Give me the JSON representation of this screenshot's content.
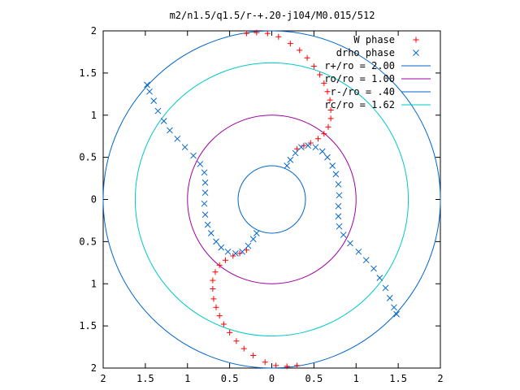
{
  "chart_data": {
    "type": "scatter",
    "title": "m2/n1.5/q1.5/r-+.20-j104/M0.015/512",
    "xlim": [
      -2,
      2
    ],
    "ylim": [
      -2,
      2
    ],
    "xticks": [
      -2,
      -1.5,
      -1,
      -0.5,
      0,
      0.5,
      1,
      1.5,
      2
    ],
    "yticks": [
      -2,
      -1.5,
      -1,
      -0.5,
      0,
      0.5,
      1,
      1.5,
      2
    ],
    "xtick_labels": [
      "2",
      "1.5",
      "1",
      "0.5",
      "0",
      "0.5",
      "1",
      "1.5",
      "2"
    ],
    "ytick_labels": [
      "2",
      "1.5",
      "1",
      "0.5",
      "0",
      "0.5",
      "1",
      "1.5",
      "2"
    ],
    "grid": false,
    "legend_position": "top-right",
    "series": [
      {
        "name": "W phase",
        "marker": "+",
        "color": "#ff0000",
        "points": [
          [
            -0.3,
            1.97
          ],
          [
            -0.18,
            1.98
          ],
          [
            -0.05,
            1.97
          ],
          [
            0.08,
            1.93
          ],
          [
            0.22,
            1.85
          ],
          [
            0.33,
            1.77
          ],
          [
            0.42,
            1.68
          ],
          [
            0.5,
            1.58
          ],
          [
            0.57,
            1.48
          ],
          [
            0.62,
            1.38
          ],
          [
            0.66,
            1.28
          ],
          [
            0.69,
            1.18
          ],
          [
            0.7,
            1.06
          ],
          [
            0.7,
            0.96
          ],
          [
            0.67,
            0.86
          ],
          [
            0.62,
            0.78
          ],
          [
            0.55,
            0.72
          ],
          [
            0.46,
            0.67
          ],
          [
            0.38,
            0.64
          ],
          [
            0.3,
            0.6
          ],
          [
            0.3,
            -1.97
          ],
          [
            0.18,
            -1.98
          ],
          [
            0.05,
            -1.97
          ],
          [
            -0.08,
            -1.93
          ],
          [
            -0.22,
            -1.85
          ],
          [
            -0.33,
            -1.77
          ],
          [
            -0.42,
            -1.68
          ],
          [
            -0.5,
            -1.58
          ],
          [
            -0.57,
            -1.48
          ],
          [
            -0.62,
            -1.38
          ],
          [
            -0.66,
            -1.28
          ],
          [
            -0.69,
            -1.18
          ],
          [
            -0.7,
            -1.06
          ],
          [
            -0.7,
            -0.96
          ],
          [
            -0.67,
            -0.86
          ],
          [
            -0.62,
            -0.78
          ],
          [
            -0.55,
            -0.72
          ],
          [
            -0.46,
            -0.67
          ],
          [
            -0.38,
            -0.64
          ],
          [
            -0.3,
            -0.6
          ]
        ]
      },
      {
        "name": "drho phase",
        "marker": "x",
        "color": "#0066cc",
        "points": [
          [
            0.18,
            0.4
          ],
          [
            0.22,
            0.47
          ],
          [
            0.28,
            0.55
          ],
          [
            0.35,
            0.62
          ],
          [
            0.43,
            0.64
          ],
          [
            0.52,
            0.62
          ],
          [
            0.6,
            0.57
          ],
          [
            0.66,
            0.5
          ],
          [
            0.72,
            0.4
          ],
          [
            0.76,
            0.3
          ],
          [
            0.79,
            0.18
          ],
          [
            0.8,
            0.05
          ],
          [
            0.79,
            -0.08
          ],
          [
            0.79,
            -0.2
          ],
          [
            0.8,
            -0.32
          ],
          [
            0.85,
            -0.42
          ],
          [
            0.93,
            -0.52
          ],
          [
            1.03,
            -0.62
          ],
          [
            1.12,
            -0.72
          ],
          [
            1.21,
            -0.82
          ],
          [
            1.28,
            -0.93
          ],
          [
            1.35,
            -1.05
          ],
          [
            1.4,
            -1.17
          ],
          [
            1.45,
            -1.28
          ],
          [
            1.48,
            -1.36
          ],
          [
            -0.18,
            -0.4
          ],
          [
            -0.22,
            -0.47
          ],
          [
            -0.28,
            -0.55
          ],
          [
            -0.35,
            -0.62
          ],
          [
            -0.43,
            -0.64
          ],
          [
            -0.52,
            -0.62
          ],
          [
            -0.6,
            -0.57
          ],
          [
            -0.66,
            -0.5
          ],
          [
            -0.72,
            -0.4
          ],
          [
            -0.76,
            -0.3
          ],
          [
            -0.79,
            -0.18
          ],
          [
            -0.8,
            -0.05
          ],
          [
            -0.79,
            0.08
          ],
          [
            -0.79,
            0.2
          ],
          [
            -0.8,
            0.32
          ],
          [
            -0.85,
            0.42
          ],
          [
            -0.93,
            0.52
          ],
          [
            -1.03,
            0.62
          ],
          [
            -1.12,
            0.72
          ],
          [
            -1.21,
            0.82
          ],
          [
            -1.28,
            0.93
          ],
          [
            -1.35,
            1.05
          ],
          [
            -1.4,
            1.17
          ],
          [
            -1.45,
            1.28
          ],
          [
            -1.48,
            1.36
          ]
        ]
      }
    ],
    "circles": [
      {
        "label": "r+/ro = 2.00",
        "radius": 2.0,
        "color": "#0066cc"
      },
      {
        "label": "ro/ro = 1.00",
        "radius": 1.0,
        "color": "#a000a0"
      },
      {
        "label": "r-/ro = .40",
        "radius": 0.4,
        "color": "#0066cc"
      },
      {
        "label": "rc/ro = 1.62",
        "radius": 1.62,
        "color": "#00c8c8"
      }
    ]
  }
}
